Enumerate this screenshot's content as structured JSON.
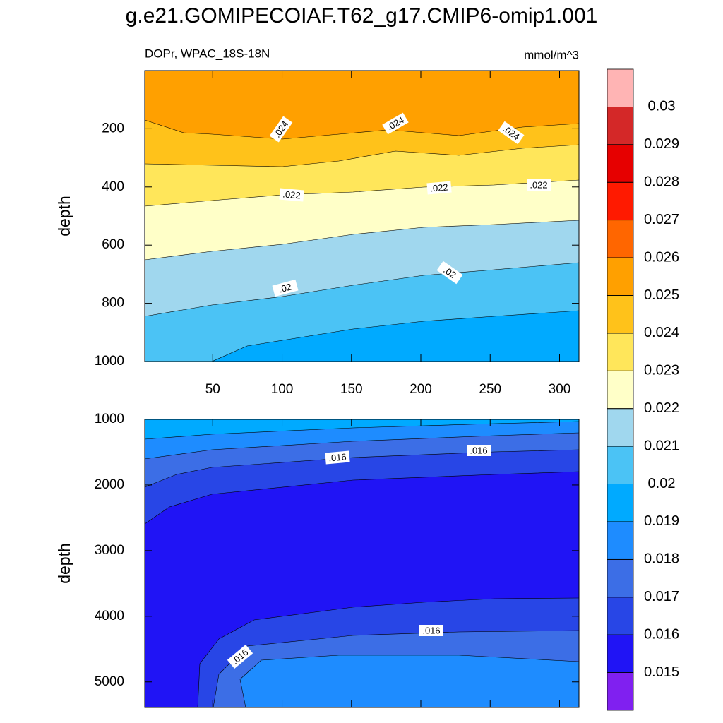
{
  "chart_data": {
    "type": "contour",
    "title": "g.e21.GOMIPECOIAF.T62_g17.CMIP6-omip1.001",
    "subtitle_left": "DOPr, WPAC_18S-18N",
    "subtitle_right": "mmol/m^3",
    "levels": [
      0.015,
      0.016,
      0.017,
      0.018,
      0.019,
      0.02,
      0.021,
      0.022,
      0.023,
      0.024,
      0.025,
      0.026,
      0.027,
      0.028,
      0.029,
      0.03
    ],
    "colors": [
      "#8020f0",
      "#2014f5",
      "#2846e6",
      "#3c6ee6",
      "#1e8cff",
      "#00aaff",
      "#4bc3f5",
      "#a0d7ee",
      "#ffffc8",
      "#ffe65a",
      "#ffc21a",
      "#ffa000",
      "#ff6600",
      "#ff1a00",
      "#e60000",
      "#d42828",
      "#ffb4b4"
    ],
    "panels": [
      {
        "ylabel": "depth",
        "xlim": [
          1,
          314
        ],
        "xticks": [
          50,
          100,
          150,
          200,
          250,
          300
        ],
        "ylim": [
          0,
          1000
        ],
        "yticks": [
          200,
          400,
          600,
          800,
          1000
        ],
        "contour_labels": [
          ".024",
          ".024",
          ".024",
          ".022",
          ".022",
          ".022",
          ".02",
          ".02"
        ]
      },
      {
        "ylabel": "depth",
        "xlim": [
          1,
          314
        ],
        "ylim": [
          1000,
          5390
        ],
        "yticks": [
          1000,
          2000,
          3000,
          4000,
          5000
        ],
        "contour_labels": [
          ".016",
          ".016",
          ".016",
          ".016"
        ]
      }
    ]
  }
}
